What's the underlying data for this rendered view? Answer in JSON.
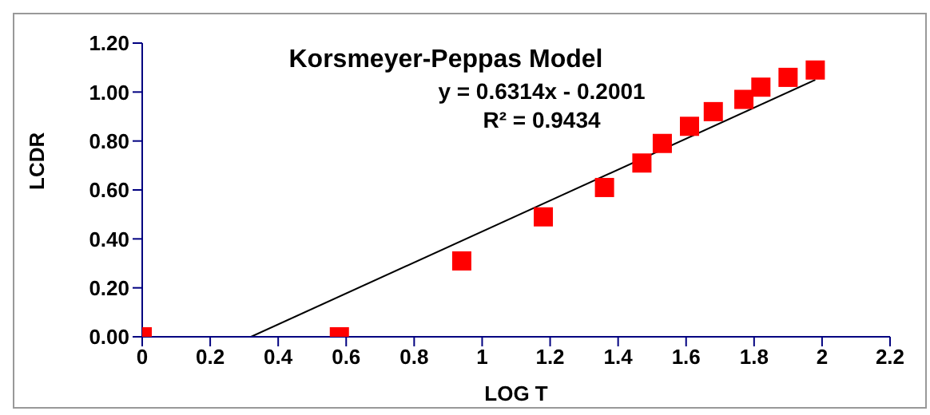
{
  "chart_data": {
    "type": "scatter",
    "title": "Korsmeyer-Peppas Model",
    "xlabel": "LOG T",
    "ylabel": "LCDR",
    "annotations": [
      "y = 0.6314x - 0.2001",
      "R² = 0.9434"
    ],
    "series": [
      {
        "color": "#ff0000",
        "marker": "square",
        "x": [
          0,
          0.58,
          0.94,
          1.18,
          1.36,
          1.47,
          1.53,
          1.61,
          1.68,
          1.77,
          1.82,
          1.9,
          1.98
        ],
        "values": [
          0,
          0,
          0.31,
          0.49,
          0.61,
          0.71,
          0.79,
          0.86,
          0.92,
          0.97,
          1.02,
          1.06,
          1.09
        ]
      },
      {
        "type": "line",
        "color": "#000000",
        "marker": "none",
        "x": [
          0.32,
          1.98
        ],
        "values": [
          0,
          1.05
        ]
      }
    ],
    "xlim": [
      0,
      2.2
    ],
    "xticks": [
      0,
      0.2,
      0.4,
      0.6,
      0.8,
      1,
      1.2,
      1.4,
      1.6,
      1.8,
      2,
      2.2
    ],
    "ylim": [
      0,
      1.2
    ],
    "yticks": [
      {
        "value": 0,
        "label": "0.00"
      },
      {
        "value": 0.2,
        "label": "0.20"
      },
      {
        "value": 0.4,
        "label": "0.40"
      },
      {
        "value": 0.6,
        "label": "0.60"
      },
      {
        "value": 0.8,
        "label": "0.80"
      },
      {
        "value": 1,
        "label": "1.00"
      },
      {
        "value": 1.2,
        "label": "1.20"
      }
    ],
    "grid": false,
    "legend": false
  }
}
